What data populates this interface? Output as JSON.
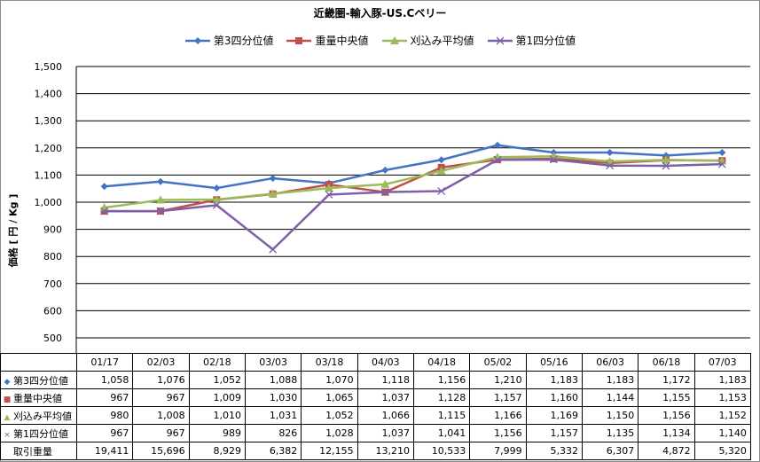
{
  "chart_data": {
    "type": "line",
    "title": "近畿圏-輸入豚-US.Cベリー",
    "ylabel": "価格 [ 円 / Kg ]",
    "xlabel": "",
    "ylim": [
      500,
      1500
    ],
    "yticks": [
      "500",
      "600",
      "700",
      "800",
      "900",
      "1,000",
      "1,100",
      "1,200",
      "1,300",
      "1,400",
      "1,500"
    ],
    "grid": true,
    "legend_position": "top",
    "categories": [
      "01/17",
      "02/03",
      "02/18",
      "03/03",
      "03/18",
      "04/03",
      "04/18",
      "05/02",
      "05/16",
      "06/03",
      "06/18",
      "07/03"
    ],
    "series": [
      {
        "name": "第3四分位値",
        "color": "#4472C4",
        "marker": "diamond",
        "values": [
          1058,
          1076,
          1052,
          1088,
          1070,
          1118,
          1156,
          1210,
          1183,
          1183,
          1172,
          1183
        ],
        "labels": [
          "1,058",
          "1,076",
          "1,052",
          "1,088",
          "1,070",
          "1,118",
          "1,156",
          "1,210",
          "1,183",
          "1,183",
          "1,172",
          "1,183"
        ]
      },
      {
        "name": "重量中央値",
        "color": "#C0504D",
        "marker": "square",
        "values": [
          967,
          967,
          1009,
          1030,
          1065,
          1037,
          1128,
          1157,
          1160,
          1144,
          1155,
          1153
        ],
        "labels": [
          "967",
          "967",
          "1,009",
          "1,030",
          "1,065",
          "1,037",
          "1,128",
          "1,157",
          "1,160",
          "1,144",
          "1,155",
          "1,153"
        ]
      },
      {
        "name": "刈込み平均値",
        "color": "#9BBB59",
        "marker": "triangle",
        "values": [
          980,
          1008,
          1010,
          1031,
          1052,
          1066,
          1115,
          1166,
          1169,
          1150,
          1156,
          1152
        ],
        "labels": [
          "980",
          "1,008",
          "1,010",
          "1,031",
          "1,052",
          "1,066",
          "1,115",
          "1,166",
          "1,169",
          "1,150",
          "1,156",
          "1,152"
        ]
      },
      {
        "name": "第1四分位値",
        "color": "#7F5FA8",
        "marker": "x",
        "values": [
          967,
          967,
          989,
          826,
          1028,
          1037,
          1041,
          1156,
          1157,
          1135,
          1134,
          1140
        ],
        "labels": [
          "967",
          "967",
          "989",
          "826",
          "1,028",
          "1,037",
          "1,041",
          "1,156",
          "1,157",
          "1,135",
          "1,134",
          "1,140"
        ]
      }
    ],
    "extra_row": {
      "name": "取引重量",
      "values": [
        19411,
        15696,
        8929,
        6382,
        12155,
        13210,
        10533,
        7999,
        5332,
        6307,
        4872,
        5320
      ],
      "labels": [
        "19,411",
        "15,696",
        "8,929",
        "6,382",
        "12,155",
        "13,210",
        "10,533",
        "7,999",
        "5,332",
        "6,307",
        "4,872",
        "5,320"
      ]
    }
  }
}
